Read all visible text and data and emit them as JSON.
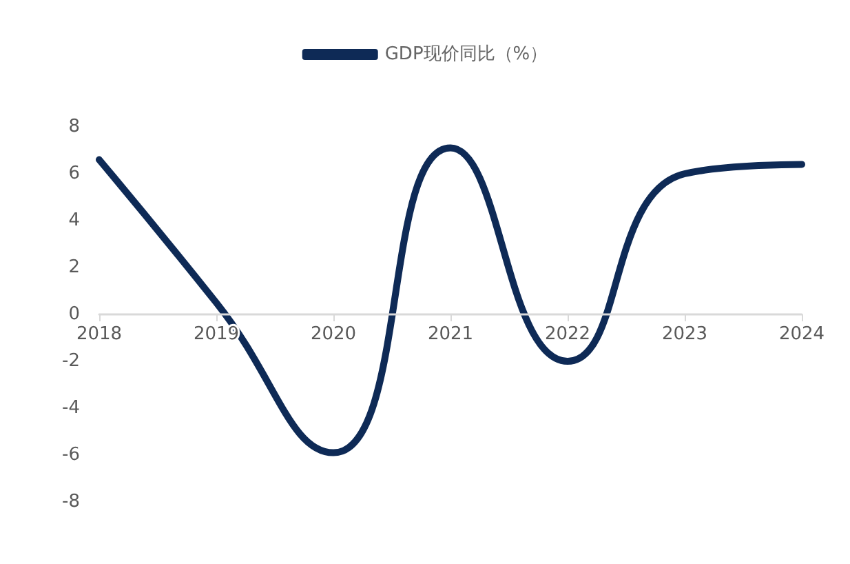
{
  "chart_data": {
    "type": "line",
    "categories": [
      "2018",
      "2019",
      "2020",
      "2021",
      "2022",
      "2023",
      "2024"
    ],
    "series": [
      {
        "name": "GDP现价同比（%）",
        "color": "#0e2a56",
        "values": [
          6.6,
          0.5,
          -5.9,
          7.1,
          -2.0,
          6.0,
          6.4
        ]
      }
    ],
    "ylim": [
      -8,
      8
    ],
    "yticks": [
      -8,
      -6,
      -4,
      -2,
      0,
      2,
      4,
      6,
      8
    ],
    "grid": false,
    "legend": "top",
    "marker": "none",
    "line_style": "solid"
  }
}
